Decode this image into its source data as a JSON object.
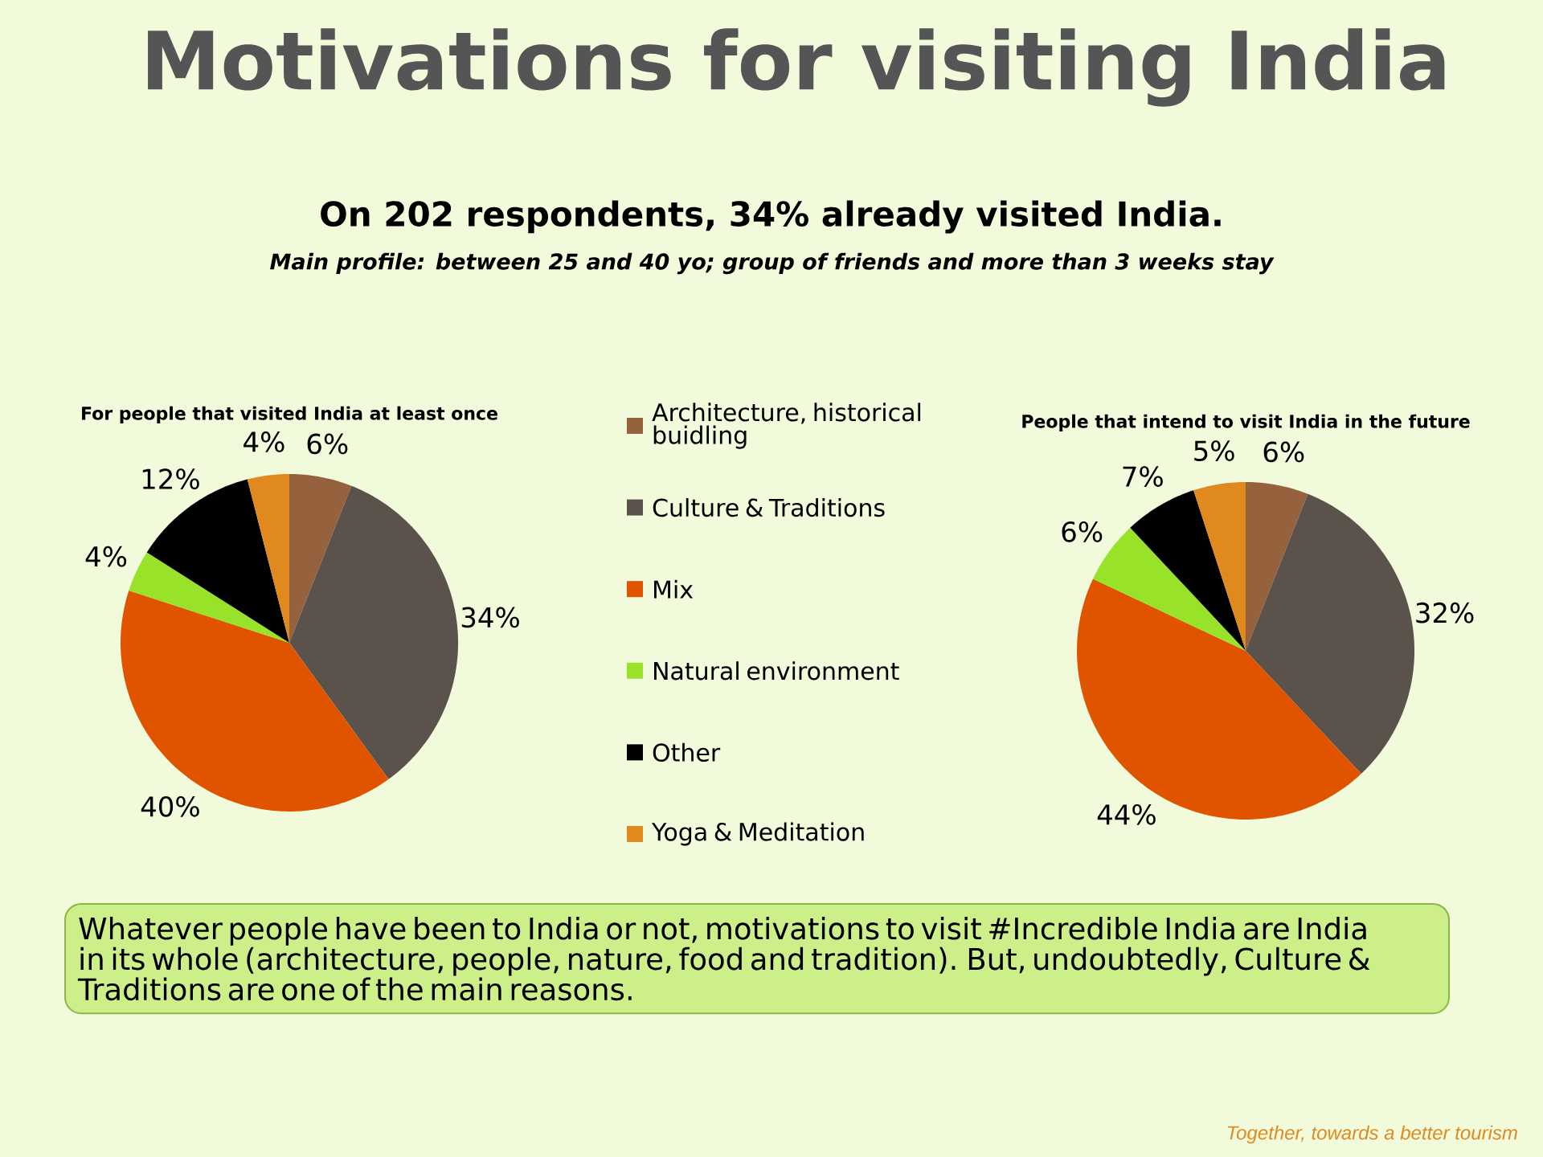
{
  "chart_data": [
    {
      "type": "other",
      "title": "Motivations for visiting India",
      "subtitle": "On 202 respondents, 34% already visited India.",
      "annotations": [
        "Main profile: between 25 and 40 yo; group of friends and more than 3 weeks stay",
        "Whatever people have been to India or not, motivations to visit #Incredible India are India in its whole (architecture, people, nature, food and tradition). But, undoubtedly, Culture & Traditions are one of the main reasons.",
        "Together, towards a better tourism"
      ]
    },
    {
      "type": "pie",
      "title": "For people that visited India at least once",
      "categories": [
        "Architecture, historical buidling",
        "Culture & Traditions",
        "Mix",
        "Natural environment",
        "Other",
        "Yoga & Meditation"
      ],
      "values": [
        6,
        34,
        40,
        4,
        12,
        4
      ],
      "value_labels": [
        "6%",
        "34%",
        "40%",
        "4%",
        "12%",
        "4%"
      ],
      "colors": [
        "#96613d",
        "#5a524b",
        "#e05400",
        "#99e22a",
        "#000000",
        "#e0891e"
      ],
      "legend": "right"
    },
    {
      "type": "pie",
      "title": "People that intend to visit India in the future",
      "categories": [
        null,
        null,
        null,
        null,
        null,
        null
      ],
      "values": [
        6,
        32,
        44,
        6,
        7,
        5
      ],
      "value_labels": [
        "6%",
        "32%",
        "44%",
        "6%",
        "7%",
        "5%"
      ],
      "colors": [
        "#96613d",
        "#5a524b",
        "#e05400",
        "#99e22a",
        "#000000",
        "#e0891e"
      ]
    }
  ]
}
